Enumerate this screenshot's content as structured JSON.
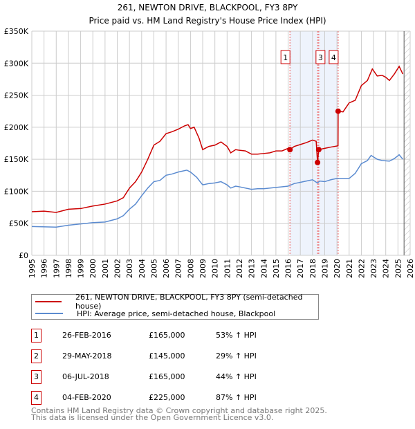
{
  "chart_data": {
    "type": "line",
    "title": "261, NEWTON DRIVE, BLACKPOOL, FY3 8PY",
    "subtitle": "Price paid vs. HM Land Registry's House Price Index (HPI)",
    "xlim": [
      1995,
      2026
    ],
    "ylim": [
      0,
      350000
    ],
    "x_ticks": [
      "1995",
      "1996",
      "1997",
      "1998",
      "1999",
      "2000",
      "2001",
      "2002",
      "2003",
      "2004",
      "2005",
      "2006",
      "2007",
      "2008",
      "2009",
      "2010",
      "2011",
      "2012",
      "2013",
      "2014",
      "2015",
      "2016",
      "2017",
      "2018",
      "2019",
      "2020",
      "2021",
      "2022",
      "2023",
      "2024",
      "2025",
      "2026"
    ],
    "y_ticks": [
      {
        "v": 0,
        "label": "£0"
      },
      {
        "v": 50000,
        "label": "£50K"
      },
      {
        "v": 100000,
        "label": "£100K"
      },
      {
        "v": 150000,
        "label": "£150K"
      },
      {
        "v": 200000,
        "label": "£200K"
      },
      {
        "v": 250000,
        "label": "£250K"
      },
      {
        "v": 300000,
        "label": "£300K"
      },
      {
        "v": 350000,
        "label": "£350K"
      }
    ],
    "grid": true,
    "shaded_range": [
      2016.15,
      2020.1
    ],
    "data_end": 2025.5,
    "series": [
      {
        "name": "261, NEWTON DRIVE, BLACKPOOL, FY3 8PY (semi-detached house)",
        "color": "#cc0000",
        "x": [
          1995,
          1996,
          1997,
          1998,
          1999,
          2000,
          2001,
          2002,
          2002.5,
          2003,
          2003.5,
          2004,
          2004.5,
          2005,
          2005.5,
          2006,
          2006.5,
          2007,
          2007.5,
          2007.8,
          2008,
          2008.3,
          2008.7,
          2009,
          2009.5,
          2010,
          2010.5,
          2011,
          2011.3,
          2011.7,
          2012,
          2012.5,
          2013,
          2013.5,
          2014,
          2014.5,
          2015,
          2015.5,
          2016,
          2016.15,
          2016.5,
          2017,
          2017.5,
          2018,
          2018.3,
          2018.41,
          2018.51,
          2019,
          2019.5,
          2020.09,
          2020.1,
          2020.5,
          2021,
          2021.5,
          2022,
          2022.5,
          2022.9,
          2023.3,
          2023.7,
          2024,
          2024.3,
          2024.7,
          2025.1,
          2025.4
        ],
        "y": [
          68000,
          69000,
          67000,
          72000,
          73000,
          77000,
          80000,
          85000,
          90000,
          105000,
          115000,
          130000,
          150000,
          172000,
          178000,
          190000,
          193000,
          197000,
          202000,
          204000,
          198000,
          200000,
          183000,
          165000,
          170000,
          172000,
          177000,
          170000,
          160000,
          165000,
          164000,
          163000,
          158000,
          158000,
          159000,
          160000,
          163000,
          163000,
          167000,
          165000,
          170000,
          173000,
          176000,
          180000,
          178000,
          145000,
          165000,
          167000,
          169000,
          171000,
          225000,
          224000,
          238000,
          242000,
          265000,
          273000,
          291000,
          280000,
          281000,
          278000,
          273000,
          283000,
          295000,
          283000
        ]
      },
      {
        "name": "HPI: Average price, semi-detached house, Blackpool",
        "color": "#5b8bd0",
        "x": [
          1995,
          1997,
          1998,
          1999,
          2000,
          2001,
          2002,
          2002.5,
          2003,
          2003.5,
          2004,
          2004.5,
          2005,
          2005.5,
          2006,
          2006.5,
          2007,
          2007.7,
          2008,
          2008.5,
          2009,
          2009.5,
          2010,
          2010.5,
          2011,
          2011.3,
          2011.7,
          2012,
          2013,
          2013.5,
          2014,
          2015,
          2015.5,
          2016,
          2016.5,
          2017,
          2017.5,
          2018,
          2018.4,
          2018.6,
          2019,
          2019.5,
          2020,
          2021,
          2021.5,
          2022,
          2022.5,
          2022.8,
          2023.3,
          2023.7,
          2024.3,
          2024.7,
          2025.1,
          2025.4
        ],
        "y": [
          45000,
          44000,
          47000,
          49000,
          51000,
          52000,
          57000,
          62000,
          72000,
          80000,
          93000,
          105000,
          115000,
          117000,
          125000,
          127000,
          130000,
          133000,
          130000,
          122000,
          110000,
          112000,
          113000,
          115000,
          110000,
          105000,
          108000,
          107000,
          103000,
          104000,
          104000,
          106000,
          107000,
          108000,
          112000,
          114000,
          116000,
          118000,
          113000,
          116000,
          115000,
          118000,
          120000,
          120000,
          128000,
          143000,
          148000,
          156000,
          150000,
          148000,
          147000,
          151000,
          157000,
          150000
        ]
      }
    ],
    "sales": [
      {
        "n": "1",
        "x": 2016.15,
        "price": 165000,
        "date": "26-FEB-2016",
        "price_label": "£165,000",
        "hpi": "53% ↑ HPI"
      },
      {
        "n": "2",
        "x": 2018.41,
        "price": 145000,
        "date": "29-MAY-2018",
        "price_label": "£145,000",
        "hpi": "29% ↑ HPI"
      },
      {
        "n": "3",
        "x": 2018.51,
        "price": 165000,
        "date": "06-JUL-2018",
        "price_label": "£165,000",
        "hpi": "44% ↑ HPI"
      },
      {
        "n": "4",
        "x": 2020.1,
        "price": 225000,
        "date": "04-FEB-2020",
        "price_label": "£225,000",
        "hpi": "87% ↑ HPI"
      }
    ]
  },
  "footer": {
    "line1": "Contains HM Land Registry data © Crown copyright and database right 2025.",
    "line2": "This data is licensed under the Open Government Licence v3.0."
  }
}
